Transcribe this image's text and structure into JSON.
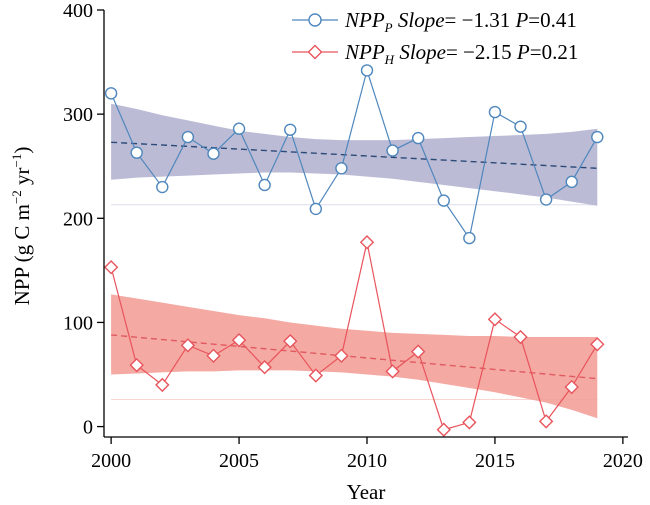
{
  "chart_data": {
    "type": "line",
    "xlabel": "Year",
    "ylabel_main": "NPP (g C m",
    "ylabel_sup1": "−2",
    "ylabel_mid": " yr",
    "ylabel_sup2": "−1",
    "ylabel_end": ")",
    "xlim": [
      1999.8,
      2020.2
    ],
    "ylim": [
      -10,
      400
    ],
    "x_ticks": [
      "2000",
      "2005",
      "2010",
      "2015",
      "2020"
    ],
    "y_ticks": [
      "0",
      "100",
      "200",
      "300",
      "400"
    ],
    "x_tick_values": [
      2000,
      2005,
      2010,
      2015,
      2020
    ],
    "y_tick_values": [
      0,
      100,
      200,
      300,
      400
    ],
    "grid": false,
    "legend_position": "top-right",
    "series": [
      {
        "name_base": "NPP",
        "name_sub": "P",
        "slope_label": " Slope",
        "slope_text": "= −1.31 ",
        "p_label": "P",
        "p_text": "=0.41",
        "color": "#4f87bd",
        "band_color": "#b7b7d3",
        "trend_color": "#2c4a78",
        "marker": "circle",
        "x": [
          2000,
          2001,
          2002,
          2003,
          2004,
          2005,
          2006,
          2007,
          2008,
          2009,
          2010,
          2011,
          2012,
          2013,
          2014,
          2015,
          2016,
          2017,
          2018,
          2019
        ],
        "values": [
          320,
          263,
          230,
          278,
          262,
          286,
          232,
          285,
          209,
          248,
          342,
          265,
          277,
          217,
          181,
          302,
          288,
          218,
          235,
          278
        ],
        "trend": [
          273,
          248
        ],
        "band_upper": [
          310,
          305,
          299,
          294,
          289,
          284,
          281,
          278,
          276,
          275,
          275,
          275,
          276,
          277,
          278,
          279,
          280,
          281,
          283,
          286
        ],
        "band_lower": [
          237,
          239,
          240,
          241,
          242,
          243,
          244,
          244,
          243,
          242,
          240,
          238,
          235,
          232,
          229,
          226,
          223,
          220,
          216,
          212
        ]
      },
      {
        "name_base": "NPP",
        "name_sub": "H",
        "slope_label": " Slope",
        "slope_text": "= −2.15 ",
        "p_label": "P",
        "p_text": "=0.21",
        "color": "#e8545c",
        "band_color": "#f3a49d",
        "trend_color": "#e05a60",
        "marker": "diamond",
        "x": [
          2000,
          2001,
          2002,
          2003,
          2004,
          2005,
          2006,
          2007,
          2008,
          2009,
          2010,
          2011,
          2012,
          2013,
          2014,
          2015,
          2016,
          2017,
          2018,
          2019
        ],
        "values": [
          153,
          59,
          40,
          78,
          68,
          83,
          57,
          82,
          49,
          68,
          177,
          53,
          72,
          -3,
          4,
          103,
          86,
          5,
          38,
          79
        ],
        "trend": [
          88,
          46
        ],
        "band_upper": [
          127,
          123,
          119,
          115,
          111,
          107,
          104,
          100,
          97,
          94,
          92,
          90,
          89,
          88,
          87,
          87,
          86,
          86,
          86,
          86
        ],
        "band_lower": [
          50,
          51,
          52,
          53,
          53,
          54,
          54,
          54,
          53,
          52,
          50,
          48,
          45,
          41,
          37,
          33,
          28,
          23,
          16,
          8
        ]
      }
    ]
  }
}
